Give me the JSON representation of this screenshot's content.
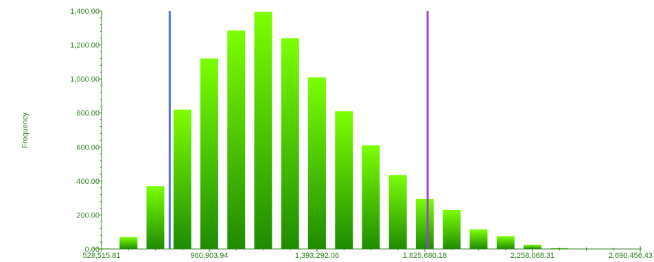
{
  "chart_data": {
    "type": "bar",
    "title": "",
    "xlabel": "",
    "ylabel": "Frequency",
    "ylim": [
      0,
      1400
    ],
    "yticks": [
      "0.00",
      "200.00",
      "400.00",
      "600.00",
      "800.00",
      "1,000.00",
      "1,200.00",
      "1,400.00"
    ],
    "xticks": [
      {
        "value": 528515.81,
        "label": "528,515.81"
      },
      {
        "value": 960903.94,
        "label": "960,903.94"
      },
      {
        "value": 1393292.06,
        "label": "1,393,292.06"
      },
      {
        "value": 1825680.18,
        "label": "1,825,680.18"
      },
      {
        "value": 2258068.31,
        "label": "2,258,068.31"
      },
      {
        "value": 2690456.43,
        "label": "2,690,456.43"
      }
    ],
    "bins": [
      {
        "center": 528515.81,
        "value": 3
      },
      {
        "center": 636612.84,
        "value": 70
      },
      {
        "center": 744709.87,
        "value": 370
      },
      {
        "center": 852806.91,
        "value": 820
      },
      {
        "center": 960903.94,
        "value": 1120
      },
      {
        "center": 1069000.97,
        "value": 1285
      },
      {
        "center": 1177098.0,
        "value": 1395
      },
      {
        "center": 1285195.03,
        "value": 1240
      },
      {
        "center": 1393292.06,
        "value": 1010
      },
      {
        "center": 1501389.09,
        "value": 810
      },
      {
        "center": 1609486.12,
        "value": 610
      },
      {
        "center": 1717583.15,
        "value": 435
      },
      {
        "center": 1825680.18,
        "value": 295
      },
      {
        "center": 1933777.21,
        "value": 230
      },
      {
        "center": 2041874.25,
        "value": 115
      },
      {
        "center": 2149971.28,
        "value": 75
      },
      {
        "center": 2258068.31,
        "value": 25
      },
      {
        "center": 2366165.34,
        "value": 5
      }
    ],
    "reference_lines": [
      {
        "x": 802000,
        "color": "#4a6fe8"
      },
      {
        "x": 1837000,
        "color": "#9b3fd6"
      }
    ],
    "bar_color_top": "#7cff00",
    "bar_color_bottom": "#1f8c00",
    "axis_color": "#2e7d1f",
    "grid": false
  }
}
